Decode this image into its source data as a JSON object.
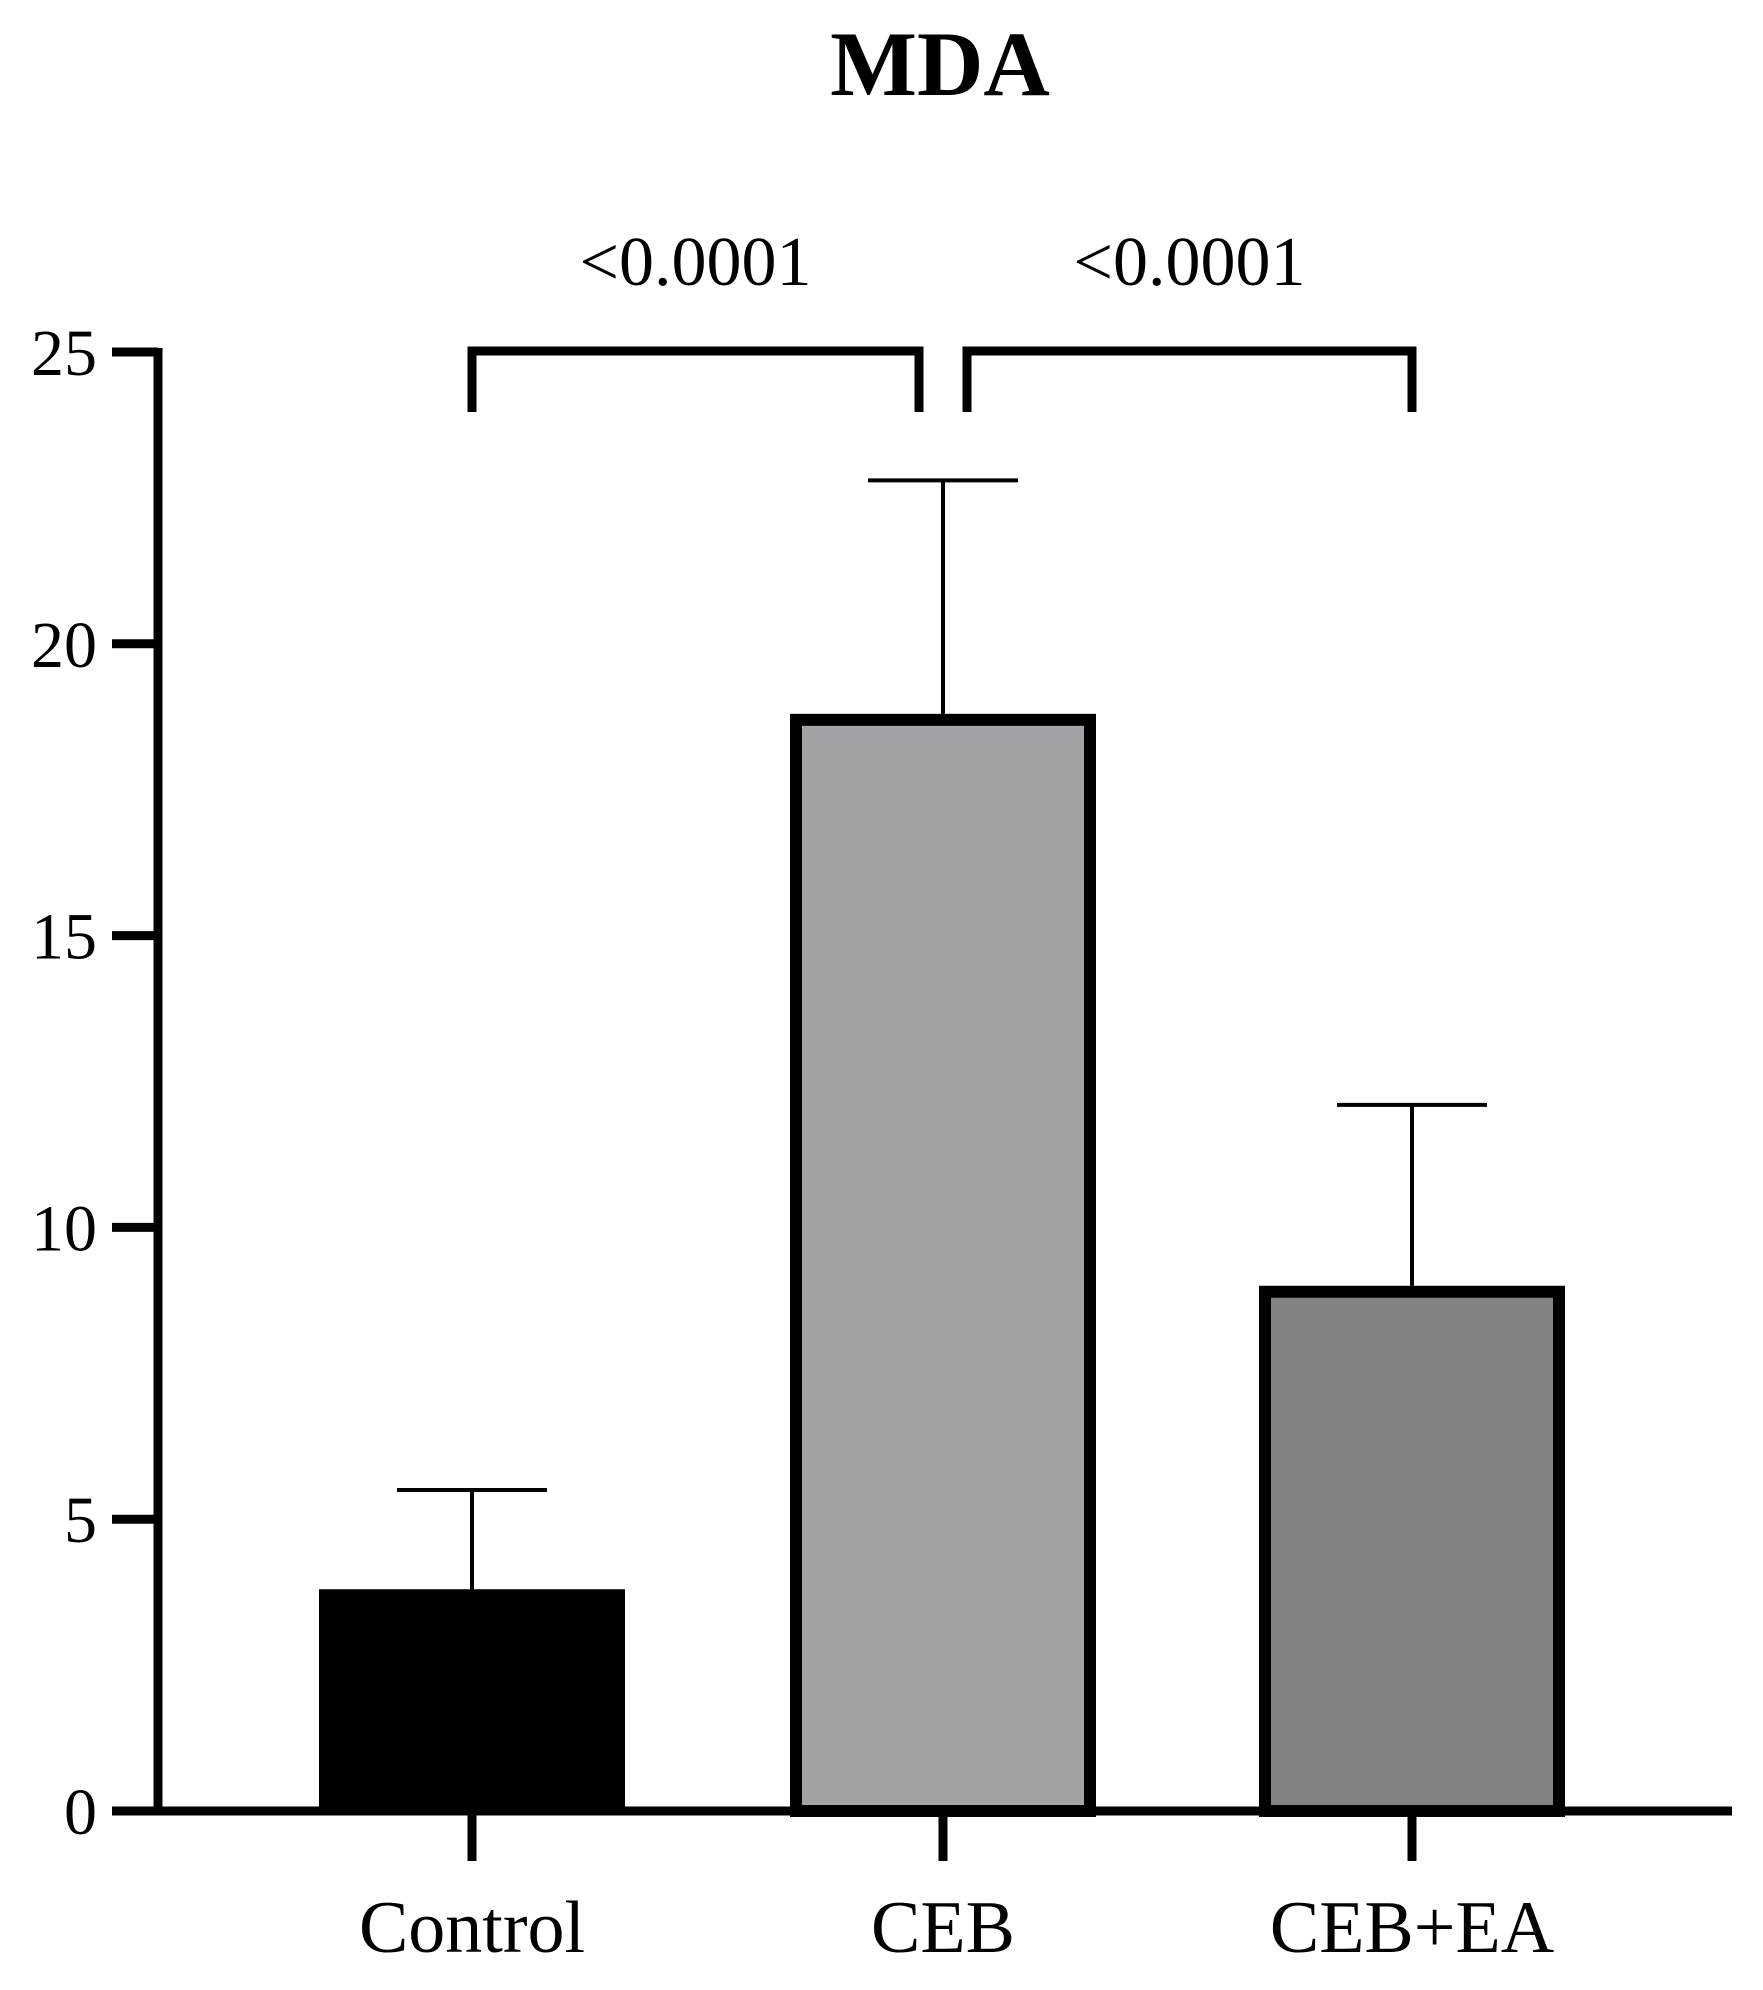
{
  "chart_data": {
    "type": "bar",
    "title": "MDA",
    "xlabel": "",
    "ylabel": "",
    "categories": [
      "Control",
      "CEB",
      "CEB+EA"
    ],
    "values": [
      3.8,
      18.8,
      9.0
    ],
    "error_upper": [
      5.5,
      22.8,
      12.1
    ],
    "ylim": [
      0,
      25
    ],
    "yticks": [
      "0",
      "5",
      "10",
      "15",
      "20",
      "25"
    ],
    "grid": false,
    "legend": "none",
    "bar_colors": [
      "#000000",
      "#a3a2a7",
      "#828282"
    ],
    "bar_outline": "#000000",
    "comparisons": [
      {
        "from": "Control",
        "to": "CEB",
        "label": "<0.0001"
      },
      {
        "from": "CEB",
        "to": "CEB+EA",
        "label": "<0.0001"
      }
    ]
  }
}
